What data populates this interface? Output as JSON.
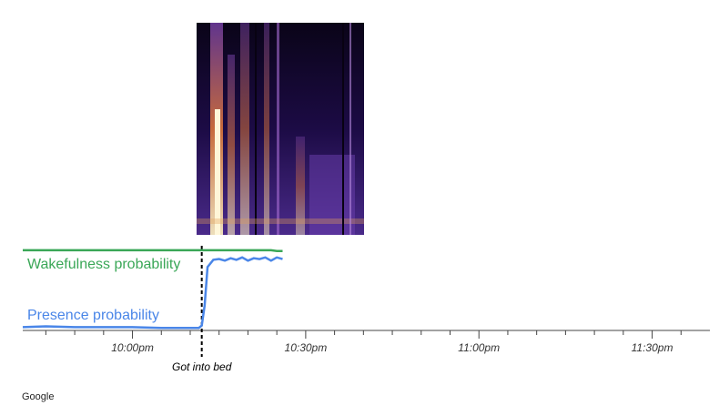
{
  "chart_data": {
    "type": "line",
    "x": [
      1301,
      1305,
      1310,
      1315,
      1320,
      1325,
      1330,
      1331.5,
      1332,
      1332.5,
      1333,
      1334,
      1335,
      1336,
      1337,
      1338,
      1339,
      1340,
      1341,
      1342,
      1343,
      1344,
      1345,
      1346
    ],
    "series": [
      {
        "name": "Wakefulness probability",
        "color": "#3aa757",
        "values": [
          0.99,
          0.99,
          0.99,
          0.99,
          0.99,
          0.99,
          0.99,
          0.99,
          0.99,
          0.99,
          0.99,
          0.99,
          0.99,
          0.99,
          0.99,
          0.99,
          0.99,
          0.99,
          0.99,
          0.99,
          0.99,
          0.99,
          0.98,
          0.98
        ]
      },
      {
        "name": "Presence probability",
        "color": "#4a86e8",
        "values": [
          0.03,
          0.04,
          0.03,
          0.03,
          0.03,
          0.02,
          0.02,
          0.02,
          0.05,
          0.3,
          0.78,
          0.87,
          0.88,
          0.86,
          0.89,
          0.87,
          0.9,
          0.86,
          0.89,
          0.88,
          0.9,
          0.86,
          0.9,
          0.88
        ]
      }
    ],
    "xlim": [
      1301,
      1420
    ],
    "ylim": [
      0,
      1
    ],
    "xticks": [
      {
        "value": 1320,
        "label": "10:00pm"
      },
      {
        "value": 1350,
        "label": "10:30pm"
      },
      {
        "value": 1380,
        "label": "11:00pm"
      },
      {
        "value": 1410,
        "label": "11:30pm"
      }
    ],
    "minor_xticks": [
      1305,
      1310,
      1315,
      1325,
      1330,
      1335,
      1340,
      1345,
      1355,
      1360,
      1365,
      1370,
      1375,
      1385,
      1390,
      1395,
      1400,
      1405,
      1415
    ],
    "annotation": {
      "x": 1332,
      "text": "Got into bed"
    },
    "footer": "Google"
  }
}
